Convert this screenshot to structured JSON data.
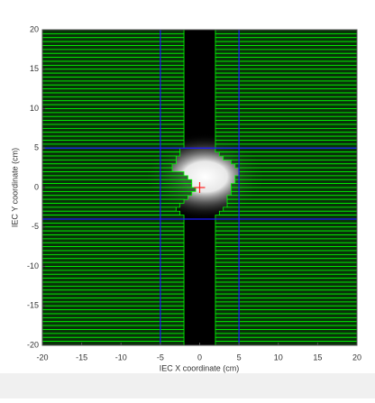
{
  "chart_data": {
    "type": "mlc",
    "xlabel": "IEC X coordinate (cm)",
    "ylabel": "IEC Y coordinate (cm)",
    "xlim": [
      -20,
      20
    ],
    "ylim": [
      -20,
      20
    ],
    "xticks": [
      -20,
      -15,
      -10,
      -5,
      0,
      5,
      10,
      15,
      20
    ],
    "yticks": [
      -20,
      -15,
      -10,
      -5,
      0,
      5,
      10,
      15,
      20
    ],
    "leaf_width": 0.5,
    "leaf_color": "#0b3d0b",
    "leaf_edge_color": "#00ff00",
    "left_bank": [
      -2,
      -2,
      -2,
      -2,
      -2,
      -2,
      -2,
      -2,
      -2,
      -2,
      -2,
      -2,
      -2,
      -2,
      -2,
      -2,
      -2,
      -2,
      -2,
      -2,
      -2,
      -2,
      -2,
      -2,
      -2,
      -2,
      -2,
      -2,
      -2,
      -2,
      -2.5,
      -2.5,
      -3,
      -3,
      -3.5,
      -3.5,
      -2,
      -1.5,
      -1,
      -1,
      -0.5,
      -1,
      -1.5,
      -2,
      -2.5,
      -3,
      -2.5,
      -2,
      -2,
      -2,
      -2,
      -2,
      -2,
      -2,
      -2,
      -2,
      -2,
      -2,
      -2,
      -2,
      -2,
      -2,
      -2,
      -2,
      -2,
      -2,
      -2,
      -2,
      -2,
      -2,
      -2,
      -2,
      -2,
      -2,
      -2,
      -2,
      -2,
      -2,
      -2,
      -2
    ],
    "right_bank": [
      2,
      2,
      2,
      2,
      2,
      2,
      2,
      2,
      2,
      2,
      2,
      2,
      2,
      2,
      2,
      2,
      2,
      2,
      2,
      2,
      2,
      2,
      2,
      2,
      2,
      2,
      2,
      2,
      2,
      2,
      2,
      2.5,
      3,
      4,
      4.5,
      5,
      5,
      4.5,
      4.5,
      4,
      4,
      4,
      3.5,
      3.5,
      3.5,
      3,
      2.5,
      2,
      2,
      2,
      2,
      2,
      2,
      2,
      2,
      2,
      2,
      2,
      2,
      2,
      2,
      2,
      2,
      2,
      2,
      2,
      2,
      2,
      2,
      2,
      2,
      2,
      2,
      2,
      2,
      2,
      2,
      2,
      2,
      2
    ],
    "jaws": {
      "x1": -5,
      "x2": 5,
      "y1": -4,
      "y2": 5,
      "color": "#1a1aff"
    },
    "isocenter": {
      "x": 0,
      "y": 0,
      "color": "#ff2020"
    }
  }
}
